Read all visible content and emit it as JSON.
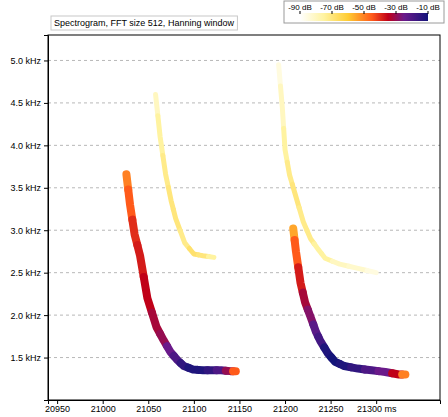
{
  "chart_data": {
    "type": "spectrogram",
    "title": "Spectrogram, FFT size 512, Hanning window",
    "xlim": [
      20940,
      21370
    ],
    "xticks": [
      20950,
      21000,
      21050,
      21100,
      21150,
      21200,
      21250,
      {
        "value": 21300,
        "label": "21300 ms"
      }
    ],
    "ylim": [
      1.0,
      5.3
    ],
    "yticks": [
      {
        "value": 1.5,
        "label": "1.5 kHz"
      },
      {
        "value": 2.0,
        "label": "2.0 kHz"
      },
      {
        "value": 2.5,
        "label": "2.5 kHz"
      },
      {
        "value": 3.0,
        "label": "3.0 kHz"
      },
      {
        "value": 3.5,
        "label": "3.5 kHz"
      },
      {
        "value": 4.0,
        "label": "4.0 kHz"
      },
      {
        "value": 4.5,
        "label": "4.5 kHz"
      },
      {
        "value": 5.0,
        "label": "5.0 kHz"
      }
    ],
    "grid": "y",
    "colorbar": {
      "range": [
        -90,
        -10
      ],
      "ticks": [
        {
          "value": -90,
          "label": "-90 dB"
        },
        {
          "value": -70,
          "label": "-70 dB"
        },
        {
          "value": -50,
          "label": "-50 dB"
        },
        {
          "value": -30,
          "label": "-30 dB"
        },
        {
          "value": -10,
          "label": "-10 dB"
        }
      ]
    },
    "series": [
      {
        "x": [
          21058,
          21063,
          21069,
          21075,
          21080,
          21090,
          21100,
          21110,
          21122
        ],
        "values": [
          4.6,
          4.1,
          3.66,
          3.35,
          3.14,
          2.85,
          2.72,
          2.7,
          2.68
        ],
        "intensity": [
          -80,
          -75,
          -72,
          -70,
          -70,
          -72,
          -68,
          -70,
          -75
        ]
      },
      {
        "x": [
          21026,
          21030,
          21035,
          21041,
          21049,
          21059,
          21067,
          21074,
          21082,
          21089,
          21099,
          21110,
          21120,
          21130,
          21140,
          21146
        ],
        "values": [
          3.66,
          3.3,
          2.95,
          2.7,
          2.2,
          1.86,
          1.7,
          1.57,
          1.47,
          1.4,
          1.36,
          1.35,
          1.35,
          1.35,
          1.34,
          1.34
        ],
        "intensity": [
          -50,
          -45,
          -40,
          -38,
          -35,
          -32,
          -30,
          -25,
          -20,
          -15,
          -12,
          -12,
          -15,
          -20,
          -30,
          -45
        ]
      },
      {
        "x": [
          21193,
          21197,
          21200,
          21205,
          21211,
          21220,
          21228,
          21236,
          21244,
          21260,
          21280,
          21300
        ],
        "values": [
          4.95,
          4.45,
          3.95,
          3.65,
          3.43,
          3.1,
          2.9,
          2.78,
          2.67,
          2.6,
          2.55,
          2.5
        ],
        "intensity": [
          -85,
          -80,
          -75,
          -72,
          -70,
          -72,
          -72,
          -75,
          -75,
          -80,
          -82,
          -85
        ]
      },
      {
        "x": [
          21209,
          21212,
          21217,
          21222,
          21228,
          21234,
          21239,
          21247,
          21255,
          21265,
          21280,
          21295,
          21310,
          21325,
          21332
        ],
        "values": [
          3.02,
          2.75,
          2.38,
          2.15,
          1.98,
          1.8,
          1.69,
          1.55,
          1.45,
          1.4,
          1.37,
          1.35,
          1.33,
          1.3,
          1.3
        ],
        "intensity": [
          -55,
          -45,
          -38,
          -32,
          -28,
          -22,
          -18,
          -12,
          -10,
          -12,
          -15,
          -20,
          -25,
          -35,
          -50
        ]
      }
    ]
  }
}
